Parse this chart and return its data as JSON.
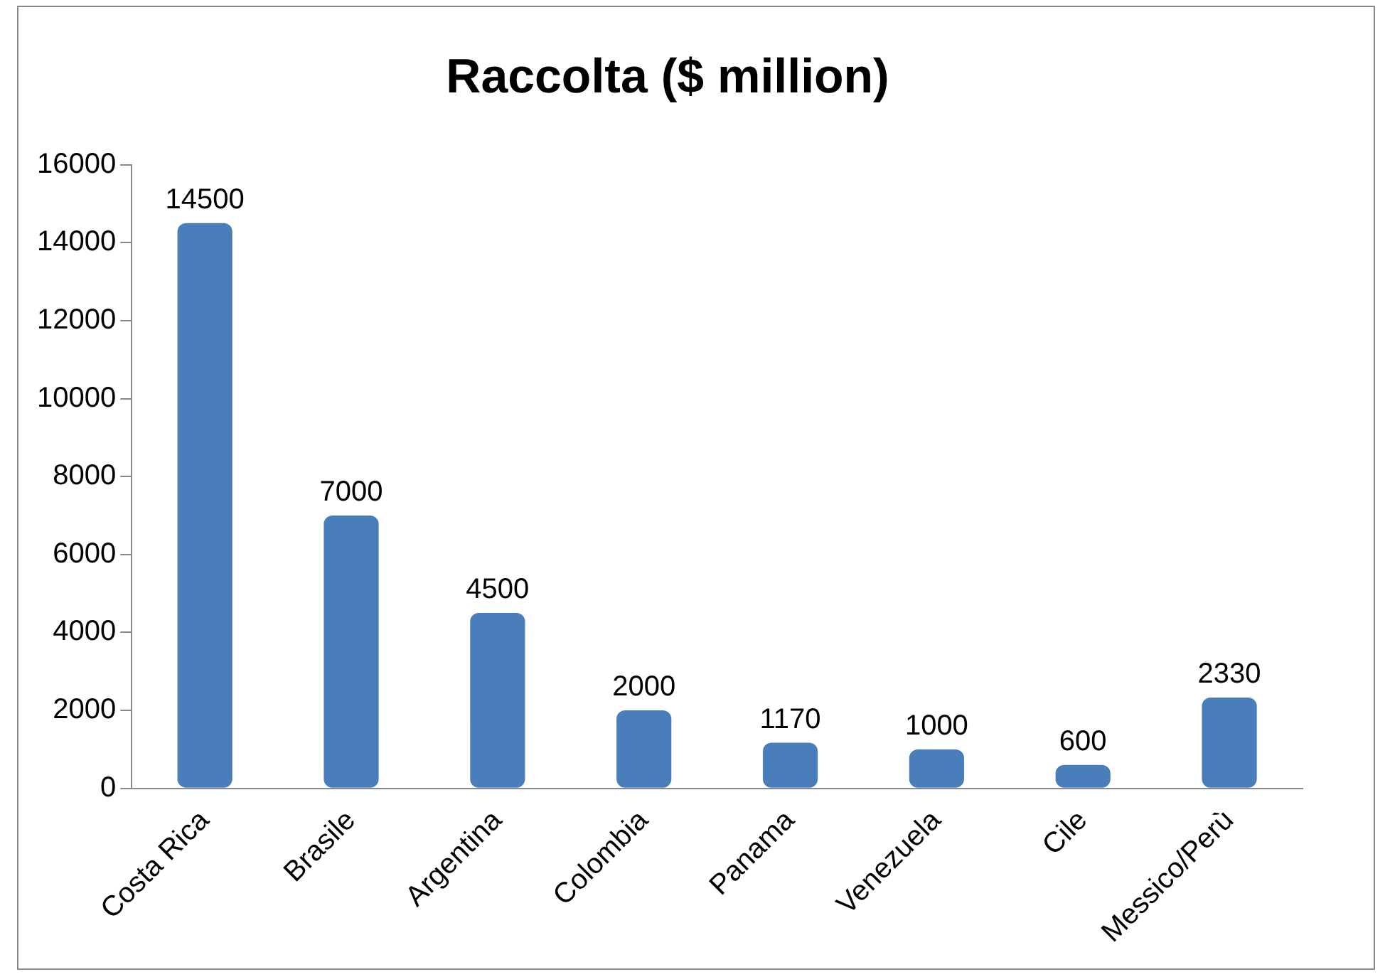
{
  "chart_data": {
    "type": "bar",
    "title": "Raccolta ($ million)",
    "categories": [
      "Costa Rica",
      "Brasile",
      "Argentina",
      "Colombia",
      "Panama",
      "Venezuela",
      "Cile",
      "Messico/Perù"
    ],
    "values": [
      14500,
      7000,
      4500,
      2000,
      1170,
      1000,
      600,
      2330
    ],
    "color": "#4a7ebb",
    "ylim": [
      0,
      16000
    ],
    "yticks": [
      0,
      2000,
      4000,
      6000,
      8000,
      10000,
      12000,
      14000,
      16000
    ],
    "grid": false,
    "legend": false,
    "data_labels": true
  }
}
